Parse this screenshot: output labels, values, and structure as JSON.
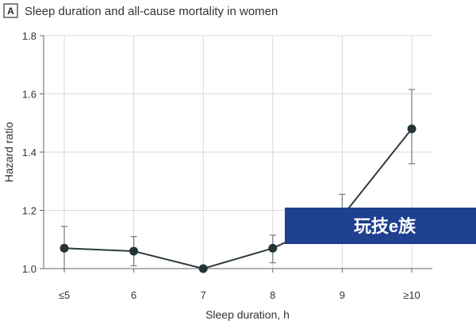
{
  "chart_data": {
    "type": "line",
    "panel_label": "A",
    "title": "Sleep duration and all-cause mortality in women",
    "xlabel": "Sleep duration, h",
    "ylabel": "Hazard ratio",
    "categories": [
      "≤5",
      "6",
      "7",
      "8",
      "9",
      "≥10"
    ],
    "values": [
      1.07,
      1.06,
      1.0,
      1.07,
      1.18,
      1.48
    ],
    "ci_lower": [
      1.0,
      1.01,
      1.0,
      1.02,
      1.11,
      1.36
    ],
    "ci_upper": [
      1.145,
      1.11,
      1.0,
      1.115,
      1.255,
      1.615
    ],
    "ylim": [
      1.0,
      1.8
    ],
    "yticks": [
      1.0,
      1.2,
      1.4,
      1.6,
      1.8
    ],
    "ytick_labels": [
      "1.0",
      "1.2",
      "1.4",
      "1.6",
      "1.8"
    ],
    "grid": true,
    "colors": {
      "line": "#2c3a3b",
      "marker": "#253436",
      "error_bar": "#777777"
    }
  },
  "watermark": {
    "text": "玩技e族",
    "background": "#1f3f8f"
  }
}
